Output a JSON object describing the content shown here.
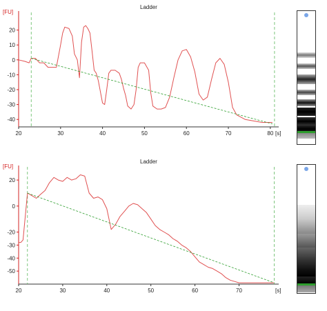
{
  "chart_data": [
    {
      "type": "line",
      "title": "Ladder",
      "y_unit": "[FU]",
      "x_unit": "[s]",
      "xlim": [
        20,
        82
      ],
      "ylim": [
        -45,
        30
      ],
      "x_ticks": [
        20,
        30,
        40,
        50,
        60,
        70,
        80
      ],
      "y_ticks": [
        20,
        10,
        0,
        -10,
        -20,
        -30,
        -40
      ],
      "markers_x": [
        23,
        81
      ],
      "colors": {
        "signal": "#e05050",
        "baseline": "#2e9e2e",
        "axis": "#d32020",
        "marker": "#5cb85c"
      },
      "series": [
        {
          "role": "signal",
          "x": [
            20,
            21.5,
            22.5,
            23,
            24,
            25,
            26,
            27,
            28,
            29,
            30,
            30.5,
            31,
            32,
            32.8,
            33.3,
            34,
            34.5,
            35,
            35.5,
            36,
            36.5,
            37,
            37.5,
            38,
            38.5,
            39,
            40,
            40.5,
            41,
            41.5,
            42,
            43,
            44,
            44.5,
            45,
            45.5,
            46,
            46.8,
            47.5,
            48,
            48.5,
            49,
            50,
            51,
            51.5,
            52,
            53,
            54,
            55,
            56,
            57,
            58,
            59,
            60,
            61,
            62,
            63,
            64,
            65,
            66,
            67,
            68,
            69,
            70,
            71,
            72,
            74,
            76,
            78,
            80.5
          ],
          "y": [
            0,
            -1,
            -2,
            1,
            1,
            -2,
            -2,
            -5,
            -5,
            -5,
            10,
            18,
            22,
            21,
            16,
            4,
            0,
            -12,
            12,
            22,
            23,
            21,
            18,
            6,
            -7,
            -9,
            -14,
            -29,
            -30,
            -20,
            -9,
            -7,
            -7,
            -9,
            -13,
            -19,
            -24,
            -31,
            -33,
            -30,
            -20,
            -5,
            -2,
            -2,
            -7,
            -22,
            -31,
            -33,
            -33,
            -32,
            -25,
            -12,
            0,
            6,
            7,
            2,
            -8,
            -23,
            -27,
            -25,
            -13,
            -2,
            1,
            -3,
            -15,
            -32,
            -37,
            -40,
            -41,
            -42,
            -42
          ]
        },
        {
          "role": "baseline",
          "x": [
            23,
            80.5
          ],
          "y": [
            1,
            -43
          ]
        }
      ]
    },
    {
      "type": "line",
      "title": "Ladder",
      "y_unit": "[FU]",
      "x_unit": "[s]",
      "xlim": [
        20,
        79
      ],
      "ylim": [
        -60,
        28
      ],
      "x_ticks": [
        20,
        30,
        40,
        50,
        60,
        70
      ],
      "y_ticks": [
        20,
        0,
        -20,
        -30,
        -40,
        -50
      ],
      "y_tick_labels": [
        "20",
        "0",
        "-20",
        "-30",
        "-40",
        "-50"
      ],
      "markers_x": [
        22,
        78
      ],
      "colors": {
        "signal": "#e05050",
        "baseline": "#2e9e2e",
        "axis": "#d32020",
        "marker": "#5cb85c"
      },
      "series": [
        {
          "role": "signal",
          "x": [
            20,
            20.5,
            21,
            22,
            23,
            24,
            25,
            26,
            27,
            28,
            29,
            30,
            31,
            32,
            33,
            34,
            35,
            36,
            37,
            38,
            39,
            40,
            41,
            42,
            43,
            44,
            45,
            46,
            47,
            48,
            49,
            50,
            51,
            52,
            53,
            54,
            55,
            56,
            57,
            58,
            59,
            60,
            61,
            62,
            63,
            64,
            65,
            66,
            67,
            68,
            69,
            70,
            72,
            74,
            76,
            78
          ],
          "y": [
            -28,
            -28,
            -26,
            10,
            8,
            6,
            9,
            12,
            18,
            22,
            20,
            19,
            22,
            20,
            21,
            24,
            23,
            10,
            6,
            7,
            5,
            -2,
            -18,
            -14,
            -8,
            -4,
            0,
            2,
            1,
            -2,
            -5,
            -10,
            -15,
            -18,
            -20,
            -22,
            -25,
            -27,
            -30,
            -32,
            -35,
            -39,
            -43,
            -45,
            -47,
            -48,
            -50,
            -52,
            -55,
            -57,
            -58,
            -59,
            -59,
            -59,
            -59,
            -59
          ]
        },
        {
          "role": "baseline",
          "x": [
            22,
            78
          ],
          "y": [
            10,
            -59
          ]
        }
      ]
    }
  ]
}
